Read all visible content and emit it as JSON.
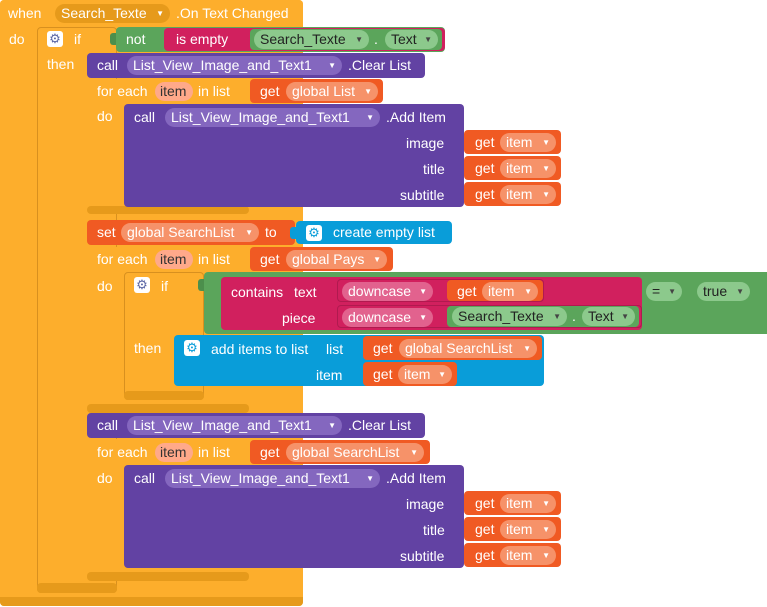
{
  "event": {
    "when": "when",
    "component": "Search_Texte",
    "handler": ".On Text Changed",
    "do": "do"
  },
  "if1": {
    "if": "if",
    "then": "then",
    "not": "not",
    "is_empty": "is empty",
    "component": "Search_Texte",
    "dot": ".",
    "property": "Text"
  },
  "clear1": {
    "call": "call",
    "component": "List_View_Image_and_Text1",
    "method": ".Clear List"
  },
  "foreach1": {
    "for_each": "for each",
    "item": "item",
    "in_list": "in list",
    "get": "get",
    "list": "global List",
    "do": "do"
  },
  "additem1": {
    "call": "call",
    "component": "List_View_Image_and_Text1",
    "method": ".Add Item",
    "image": "image",
    "title": "title",
    "subtitle": "subtitle",
    "get": "get",
    "item": "item"
  },
  "setvar": {
    "set": "set",
    "var": "global SearchList",
    "to": "to",
    "create_list": "create empty list"
  },
  "foreach2": {
    "for_each": "for each",
    "item": "item",
    "in_list": "in list",
    "get": "get",
    "list": "global Pays",
    "do": "do"
  },
  "if2": {
    "if": "if",
    "then": "then",
    "contains": "contains",
    "text": "text",
    "piece": "piece",
    "downcase": "downcase",
    "get": "get",
    "item": "item",
    "component": "Search_Texte",
    "dot": ".",
    "property": "Text",
    "equals": "=",
    "true": "true"
  },
  "additems": {
    "label": "add items to list",
    "list": "list",
    "item_label": "item",
    "get": "get",
    "var": "global SearchList",
    "item": "item"
  },
  "clear2": {
    "call": "call",
    "component": "List_View_Image_and_Text1",
    "method": ".Clear List"
  },
  "foreach3": {
    "for_each": "for each",
    "item": "item",
    "in_list": "in list",
    "get": "get",
    "list": "global SearchList",
    "do": "do"
  },
  "additem2": {
    "call": "call",
    "component": "List_View_Image_and_Text1",
    "method": ".Add Item",
    "image": "image",
    "title": "title",
    "subtitle": "subtitle",
    "get": "get",
    "item": "item"
  },
  "colors": {
    "control": "#fdae2c",
    "logic": "#5ba55b",
    "component": "#6242a3",
    "variable": "#f05a23",
    "text": "#d1205e",
    "list": "#099dd9"
  },
  "icons": {
    "mutator": "gear-icon",
    "dropdown": "dropdown-arrow-icon"
  }
}
